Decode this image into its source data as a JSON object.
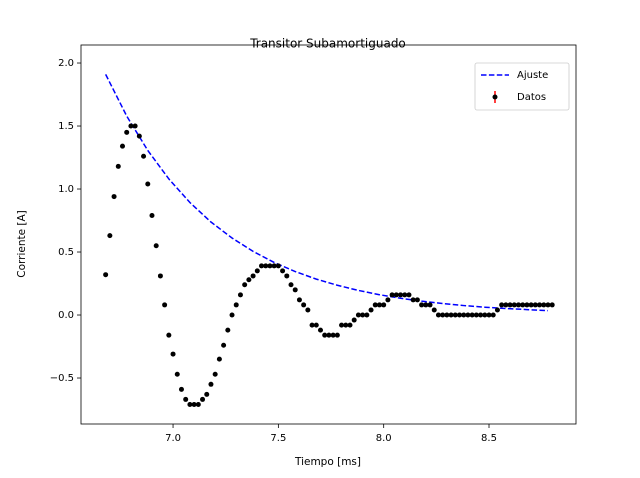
{
  "chart_data": {
    "type": "line",
    "title": "Transitor Subamortiguado",
    "xlabel": "Tiempo [ms]",
    "ylabel": "Corriente [A]",
    "xlim": [
      6.563,
      8.913
    ],
    "ylim": [
      -0.865,
      2.143
    ],
    "xticks": [
      {
        "value": 7,
        "label": "7.0"
      },
      {
        "value": 7.5,
        "label": "7.5"
      },
      {
        "value": 8,
        "label": "8.0"
      },
      {
        "value": 8.5,
        "label": "8.5"
      }
    ],
    "yticks": [
      {
        "value": -0.5,
        "label": "−0.5"
      },
      {
        "value": 0,
        "label": "0.0"
      },
      {
        "value": 0.5,
        "label": "0.5"
      },
      {
        "value": 1,
        "label": "1.0"
      },
      {
        "value": 1.5,
        "label": "1.5"
      },
      {
        "value": 2,
        "label": "2.0"
      }
    ],
    "legend": "upper right",
    "series": [
      {
        "name": "Ajuste",
        "color": "#0000ff",
        "style": "dashed",
        "x": [
          6.68,
          6.78,
          6.88,
          6.98,
          7.08,
          7.18,
          7.28,
          7.38,
          7.48,
          7.58,
          7.68,
          7.78,
          7.88,
          7.98,
          8.08,
          8.18,
          8.28,
          8.38,
          8.48,
          8.58,
          8.68,
          8.78
        ],
        "values": [
          1.91,
          1.579,
          1.306,
          1.08,
          0.893,
          0.738,
          0.611,
          0.505,
          0.417,
          0.345,
          0.285,
          0.236,
          0.195,
          0.161,
          0.133,
          0.11,
          0.091,
          0.075,
          0.062,
          0.052,
          0.043,
          0.035
        ]
      },
      {
        "name": "Datos",
        "color": "#000000",
        "style": "markers",
        "error_color": "#ff0000",
        "x": [
          6.68,
          6.7,
          6.72,
          6.74,
          6.76,
          6.78,
          6.8,
          6.82,
          6.84,
          6.86,
          6.88,
          6.9,
          6.92,
          6.94,
          6.96,
          6.98,
          7.0,
          7.02,
          7.04,
          7.06,
          7.08,
          7.1,
          7.12,
          7.14,
          7.16,
          7.18,
          7.2,
          7.22,
          7.24,
          7.26,
          7.28,
          7.3,
          7.32,
          7.34,
          7.36,
          7.38,
          7.4,
          7.42,
          7.44,
          7.46,
          7.48,
          7.5,
          7.52,
          7.54,
          7.56,
          7.58,
          7.6,
          7.62,
          7.64,
          7.66,
          7.68,
          7.7,
          7.72,
          7.74,
          7.76,
          7.78,
          7.8,
          7.82,
          7.84,
          7.86,
          7.88,
          7.9,
          7.92,
          7.94,
          7.96,
          7.98,
          8.0,
          8.02,
          8.04,
          8.06,
          8.08,
          8.1,
          8.12,
          8.14,
          8.16,
          8.18,
          8.2,
          8.22,
          8.24,
          8.26,
          8.28,
          8.3,
          8.32,
          8.34,
          8.36,
          8.38,
          8.4,
          8.42,
          8.44,
          8.46,
          8.48,
          8.5,
          8.52,
          8.54,
          8.56,
          8.58,
          8.6,
          8.62,
          8.64,
          8.66,
          8.68,
          8.7,
          8.72,
          8.74,
          8.76,
          8.78,
          8.8
        ],
        "values": [
          0.32,
          0.63,
          0.94,
          1.18,
          1.34,
          1.45,
          1.5,
          1.5,
          1.42,
          1.26,
          1.04,
          0.79,
          0.55,
          0.31,
          0.08,
          -0.16,
          -0.31,
          -0.47,
          -0.59,
          -0.67,
          -0.71,
          -0.71,
          -0.71,
          -0.67,
          -0.63,
          -0.55,
          -0.47,
          -0.35,
          -0.24,
          -0.12,
          0,
          0.08,
          0.16,
          0.24,
          0.28,
          0.31,
          0.35,
          0.39,
          0.39,
          0.39,
          0.39,
          0.39,
          0.35,
          0.31,
          0.24,
          0.2,
          0.12,
          0.08,
          0.04,
          -0.08,
          -0.08,
          -0.12,
          -0.16,
          -0.16,
          -0.16,
          -0.16,
          -0.08,
          -0.08,
          -0.08,
          -0.04,
          0,
          0,
          0,
          0.04,
          0.08,
          0.08,
          0.08,
          0.12,
          0.16,
          0.16,
          0.16,
          0.16,
          0.16,
          0.12,
          0.12,
          0.08,
          0.08,
          0.08,
          0.04,
          0,
          0,
          0,
          0,
          0,
          0,
          0,
          0,
          0,
          0,
          0,
          0,
          0,
          0,
          0.04,
          0.08,
          0.08,
          0.08,
          0.08,
          0.08,
          0.08,
          0.08,
          0.08,
          0.08,
          0.08,
          0.08,
          0.08,
          0.08
        ]
      }
    ]
  }
}
